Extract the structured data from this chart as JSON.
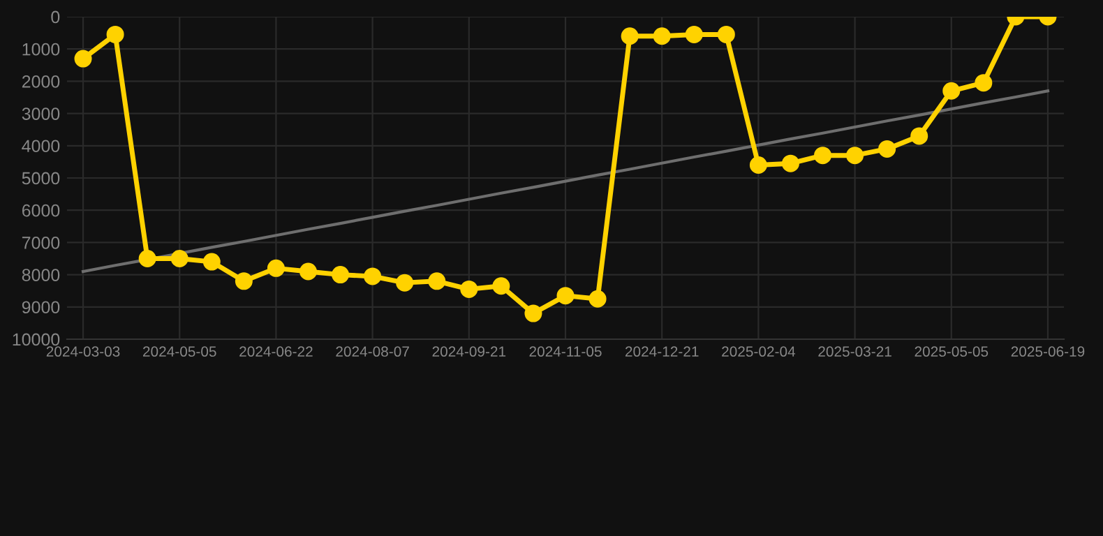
{
  "chart_data": {
    "type": "line",
    "categories": [
      "2024-03-03",
      null,
      null,
      "2024-05-05",
      null,
      null,
      "2024-06-22",
      null,
      null,
      "2024-08-07",
      null,
      null,
      "2024-09-21",
      null,
      null,
      "2024-11-05",
      null,
      null,
      "2024-12-21",
      null,
      null,
      "2025-02-04",
      null,
      null,
      "2025-03-21",
      null,
      null,
      "2025-05-05",
      null,
      null,
      "2025-06-19"
    ],
    "series": [
      {
        "color": "#ffd200",
        "marker": "circle",
        "values": [
          1300,
          550,
          7500,
          7500,
          7600,
          8200,
          7800,
          7900,
          8000,
          8050,
          8250,
          8200,
          8450,
          8350,
          9200,
          8650,
          8750,
          600,
          600,
          550,
          550,
          4600,
          4550,
          4300,
          4300,
          4100,
          3700,
          2300,
          2050,
          0,
          0
        ]
      },
      {
        "type": "line",
        "color": "#6e6e6e",
        "marker": "none",
        "values": [
          7900,
          7710,
          7530,
          7340,
          7150,
          6970,
          6780,
          6590,
          6410,
          6220,
          6030,
          5850,
          5660,
          5470,
          5290,
          5100,
          4910,
          4730,
          4540,
          4350,
          4170,
          3980,
          3790,
          3610,
          3420,
          3230,
          3050,
          2860,
          2670,
          2490,
          2300
        ]
      }
    ],
    "ylim": [
      10000,
      0
    ],
    "yticks": [
      0,
      1000,
      2000,
      3000,
      4000,
      5000,
      6000,
      7000,
      8000,
      9000,
      10000
    ],
    "grid": true,
    "line_style": "solid"
  }
}
